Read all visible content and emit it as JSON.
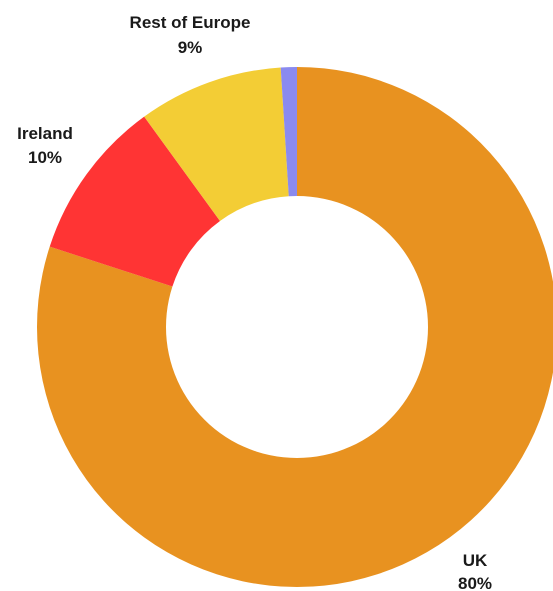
{
  "chart_data": {
    "type": "pie",
    "variant": "donut",
    "slices": [
      {
        "label": "UK",
        "value": 80,
        "value_label": "80%",
        "color": "#E89220"
      },
      {
        "label": "Ireland",
        "value": 10,
        "value_label": "10%",
        "color": "#FF3434"
      },
      {
        "label": "Rest of Europe",
        "value": 9,
        "value_label": "9%",
        "color": "#F3CD35"
      },
      {
        "label": "",
        "value": 1,
        "value_label": "",
        "color": "#8A8AEF"
      }
    ],
    "title": "",
    "legend": "none"
  }
}
